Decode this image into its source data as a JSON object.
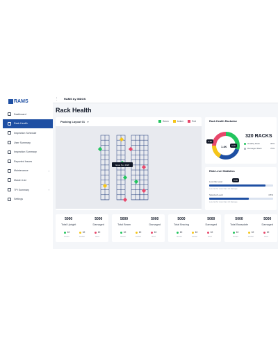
{
  "colors": {
    "green": "#22c55e",
    "amber": "#f5c518",
    "red": "#e8486b",
    "primary": "#1e4fa3"
  },
  "brand": {
    "name": "RAMS"
  },
  "header": {
    "title": "RAMS by INDOS"
  },
  "page": {
    "title": "Rack Health"
  },
  "sidebar": {
    "items": [
      {
        "label": "Dashboard",
        "icon": "dashboard-icon"
      },
      {
        "label": "Rack Health",
        "icon": "rack-icon",
        "active": true
      },
      {
        "label": "Inspection Schedule",
        "icon": "calendar-icon"
      },
      {
        "label": "User Summary",
        "icon": "user-icon"
      },
      {
        "label": "Inspection Summary",
        "icon": "clipboard-icon"
      },
      {
        "label": "Reported Issues",
        "icon": "alert-icon"
      },
      {
        "label": "Maintenance",
        "icon": "wrench-icon",
        "has_chevron": true
      },
      {
        "label": "Master List",
        "icon": "list-icon"
      },
      {
        "label": "TPI Summary",
        "icon": "document-icon",
        "has_chevron": true
      },
      {
        "label": "Settings",
        "icon": "gear-icon"
      }
    ]
  },
  "layout": {
    "selector": "Packing Layout 01",
    "legend": [
      "Green",
      "Amber",
      "Red"
    ],
    "tooltip": "Issue No. 4026"
  },
  "health": {
    "title": "Rack Health Rackwise",
    "count": "320 RACKS",
    "center": "1.4K",
    "bubbles": [
      "3.4K",
      "1.4K",
      "3.4K"
    ],
    "healthy_label": "Healthy Rack",
    "healthy_value": "30%",
    "damaged_label": "Damaged Rack",
    "damaged_value": "70%"
  },
  "risk": {
    "title": "Risk Level Statistics",
    "rows": [
      {
        "label": "Low risk Level",
        "badge": "3.4K",
        "note": "Low risk for more than 1.0 Damage",
        "level": 0.88
      },
      {
        "label": "Selected Level",
        "value": "4.5%",
        "note": "Low risk for more than 1.0 Damage",
        "level": 0.62
      }
    ]
  },
  "stats": [
    {
      "total": "5000",
      "total_label": "Total Upright",
      "damaged": "5000",
      "damaged_label": "Damaged",
      "cells": [
        {
          "v": "10",
          "n": "Green"
        },
        {
          "v": "10",
          "n": "Amber"
        },
        {
          "v": "10",
          "n": "Red"
        }
      ]
    },
    {
      "total": "5000",
      "total_label": "Total Beam",
      "damaged": "5000",
      "damaged_label": "Damaged",
      "cells": [
        {
          "v": "10",
          "n": "Green"
        },
        {
          "v": "10",
          "n": "Amber"
        },
        {
          "v": "10",
          "n": "Red"
        }
      ]
    },
    {
      "total": "5000",
      "total_label": "Total Bracing",
      "damaged": "5000",
      "damaged_label": "Damaged",
      "cells": [
        {
          "v": "10",
          "n": "Green"
        },
        {
          "v": "10",
          "n": "Amber"
        },
        {
          "v": "10",
          "n": "Red"
        }
      ]
    },
    {
      "total": "5000",
      "total_label": "Total Baseplate",
      "damaged": "5000",
      "damaged_label": "Damaged",
      "cells": [
        {
          "v": "10",
          "n": "Green"
        },
        {
          "v": "10",
          "n": "Amber"
        },
        {
          "v": "10",
          "n": "Red"
        }
      ]
    }
  ]
}
